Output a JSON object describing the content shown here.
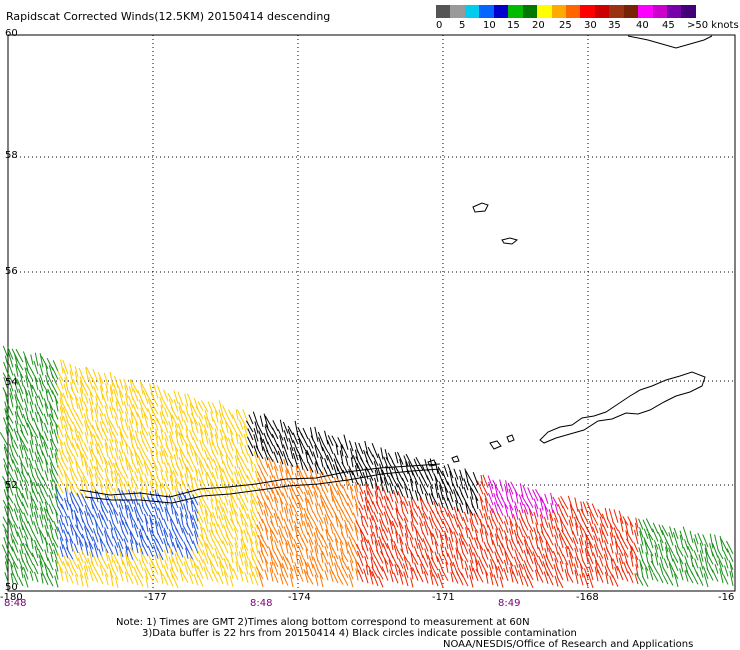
{
  "title": "Rapidscat Corrected Winds(12.5KM) 20150414 descending",
  "legend": {
    "colors": [
      "#555555",
      "#9a9a9a",
      "#00ccee",
      "#0066ff",
      "#0000cc",
      "#00bb00",
      "#007700",
      "#ffff00",
      "#ffaa00",
      "#ff6600",
      "#ff0000",
      "#cc0000",
      "#993311",
      "#772200",
      "#ff00ff",
      "#cc00cc",
      "#7700aa",
      "#440077"
    ],
    "labels": [
      "0",
      "5",
      "10",
      "15",
      "20",
      "25",
      "30",
      "35",
      "40",
      "45",
      ">50 knots"
    ]
  },
  "axes": {
    "lat_ticks": [
      "60",
      "58",
      "56",
      "54",
      "52",
      "50"
    ],
    "lon_ticks": [
      "-180",
      "-177",
      "-174",
      "-171",
      "-168",
      "-16"
    ],
    "times": [
      "8:48",
      "8:48",
      "8:49"
    ]
  },
  "notes": {
    "line1": "Note: 1) Times are GMT 2)Times along bottom correspond to measurement at 60N",
    "line2": "3)Data buffer is 22 hrs from 20150414 4) Black circles indicate possible contamination",
    "credit": "NOAA/NESDIS/Office of Research and Applications"
  },
  "colors": {
    "wind_slow": "#1a8f1a",
    "wind_mid": "#ffcc00",
    "wind_fast": "#ee2200",
    "wind_contaminated": "#000000",
    "wind_extreme": "#dd00dd",
    "grid": "#000000"
  }
}
